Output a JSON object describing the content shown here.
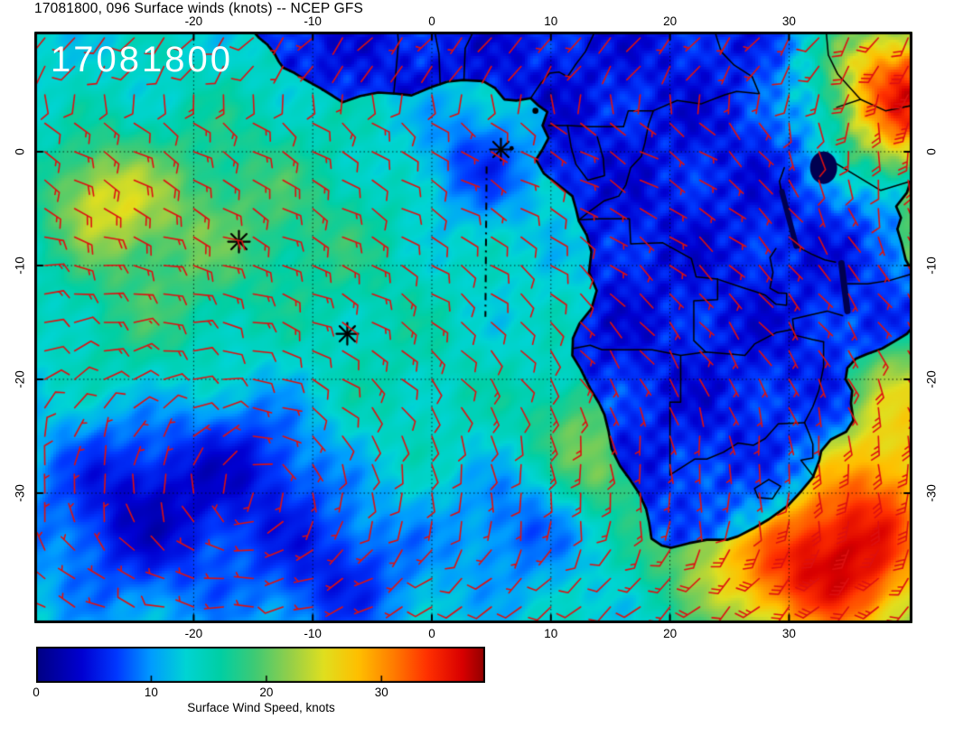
{
  "header": {
    "title": "17081800, 096 Surface winds (knots) -- NCEP GFS"
  },
  "map": {
    "overlay_timestamp": "17081800"
  },
  "axes": {
    "lon_tick_labels": [
      "-20",
      "-10",
      "0",
      "10",
      "20",
      "30"
    ],
    "lon_tick_values": [
      -20,
      -10,
      0,
      10,
      20,
      30
    ],
    "lat_tick_labels": [
      "0",
      "-10",
      "-20",
      "-30"
    ],
    "lat_tick_values": [
      0,
      -10,
      -20,
      -30
    ]
  },
  "colorbar": {
    "label": "Surface Wind Speed, knots",
    "tick_labels": [
      "0",
      "10",
      "20",
      "30"
    ],
    "tick_values": [
      0,
      10,
      20,
      30
    ],
    "min": 0,
    "max": 39
  },
  "colormap": {
    "stops": [
      [
        0,
        "#000082"
      ],
      [
        4,
        "#0000d2"
      ],
      [
        7,
        "#0038ff"
      ],
      [
        10,
        "#009cff"
      ],
      [
        13,
        "#00d4d4"
      ],
      [
        16,
        "#00cfa4"
      ],
      [
        19,
        "#3fca74"
      ],
      [
        22,
        "#93cf4a"
      ],
      [
        25,
        "#e0df1f"
      ],
      [
        28,
        "#ffbf00"
      ],
      [
        31,
        "#ff7d00"
      ],
      [
        34,
        "#ff3000"
      ],
      [
        37,
        "#d90000"
      ],
      [
        40,
        "#8f0000"
      ]
    ]
  },
  "colors": {
    "barb": "#dd1010",
    "coast": "#000000",
    "border": "#000000",
    "grid": "#000000",
    "frame": "#000000",
    "overlay_text": "#ffffff",
    "lake": "#000050",
    "marker": "#000000"
  },
  "chart_data": {
    "type": "heatmap",
    "title": "17081800, 096 Surface winds (knots) -- NCEP GFS",
    "date_run": "17081800",
    "forecast_hour": "096",
    "variable": "Surface winds",
    "units": "knots",
    "model": "NCEP GFS",
    "lon_range": [
      -33.4,
      40.4
    ],
    "lat_range": [
      -41.4,
      10.6
    ],
    "speed_range_knots": [
      0,
      39
    ],
    "base_speed_ocean_knots": 13,
    "base_speed_land_knots": 5.2,
    "field_features": [
      {
        "lon": -28,
        "lat": -4,
        "sigma": 3.5,
        "amp": 9,
        "land": 0.3
      },
      {
        "lon": -22,
        "lat": -8,
        "sigma": 6,
        "amp": 5,
        "land": 0.3
      },
      {
        "lon": -25,
        "lat": -18,
        "sigma": 5,
        "amp": 3,
        "land": 0.3
      },
      {
        "lon": -24,
        "lat": -31,
        "sigma": 6.5,
        "amp": -9.5,
        "land": 0.3
      },
      {
        "lon": -8,
        "lat": -37,
        "sigma": 5,
        "amp": -7,
        "land": 0.3
      },
      {
        "lon": -14,
        "lat": -27,
        "sigma": 4,
        "amp": -5,
        "land": 0.3
      },
      {
        "lon": 4,
        "lat": -1,
        "sigma": 3.5,
        "amp": -6,
        "land": 0.5
      },
      {
        "lon": 7,
        "lat": -33,
        "sigma": 4,
        "amp": -5,
        "land": 0.3
      },
      {
        "lon": 12.5,
        "lat": -24.5,
        "sigma": 3.5,
        "amp": 7,
        "land": 0.25
      },
      {
        "lon": 14.5,
        "lat": -29,
        "sigma": 2.2,
        "amp": 5,
        "land": 0.25
      },
      {
        "lon": 34,
        "lat": -36.5,
        "sigma": 6,
        "amp": 22,
        "land": 0.45
      },
      {
        "lon": 39,
        "lat": -29,
        "sigma": 5,
        "amp": 9,
        "land": 0.4
      },
      {
        "lon": 40,
        "lat": -21,
        "sigma": 4,
        "amp": 8,
        "land": 0.5
      },
      {
        "lon": 41,
        "lat": -11,
        "sigma": 3,
        "amp": 5,
        "land": 0.5
      },
      {
        "lon": 41,
        "lat": 3,
        "sigma": 5,
        "amp": 21,
        "land": 1
      },
      {
        "lon": 38,
        "lat": 8,
        "sigma": 5,
        "amp": 14,
        "land": 1
      },
      {
        "lon": -16,
        "lat": -2,
        "sigma": 6,
        "amp": 3,
        "land": 0.3
      },
      {
        "lon": 20,
        "lat": -34.5,
        "sigma": 3,
        "amp": 4,
        "land": 0.4
      },
      {
        "lon": 26,
        "lat": -37,
        "sigma": 4,
        "amp": 6,
        "land": 0.5
      },
      {
        "lon": -8,
        "lat": -8,
        "sigma": 5,
        "amp": 3,
        "land": 0.3
      },
      {
        "lon": -2,
        "lat": -20,
        "sigma": 6,
        "amp": 2,
        "land": 0.3
      }
    ],
    "markers": [
      {
        "lon": 5.8,
        "lat": 0.2
      },
      {
        "lon": -16.2,
        "lat": -7.9
      },
      {
        "lon": -7.1,
        "lat": -16.0
      }
    ],
    "track": {
      "from": {
        "lon": 4.6,
        "lat": -1.3
      },
      "to": {
        "lon": 4.5,
        "lat": -14.5
      }
    },
    "barb_grid_spacing_deg": 2.5
  }
}
